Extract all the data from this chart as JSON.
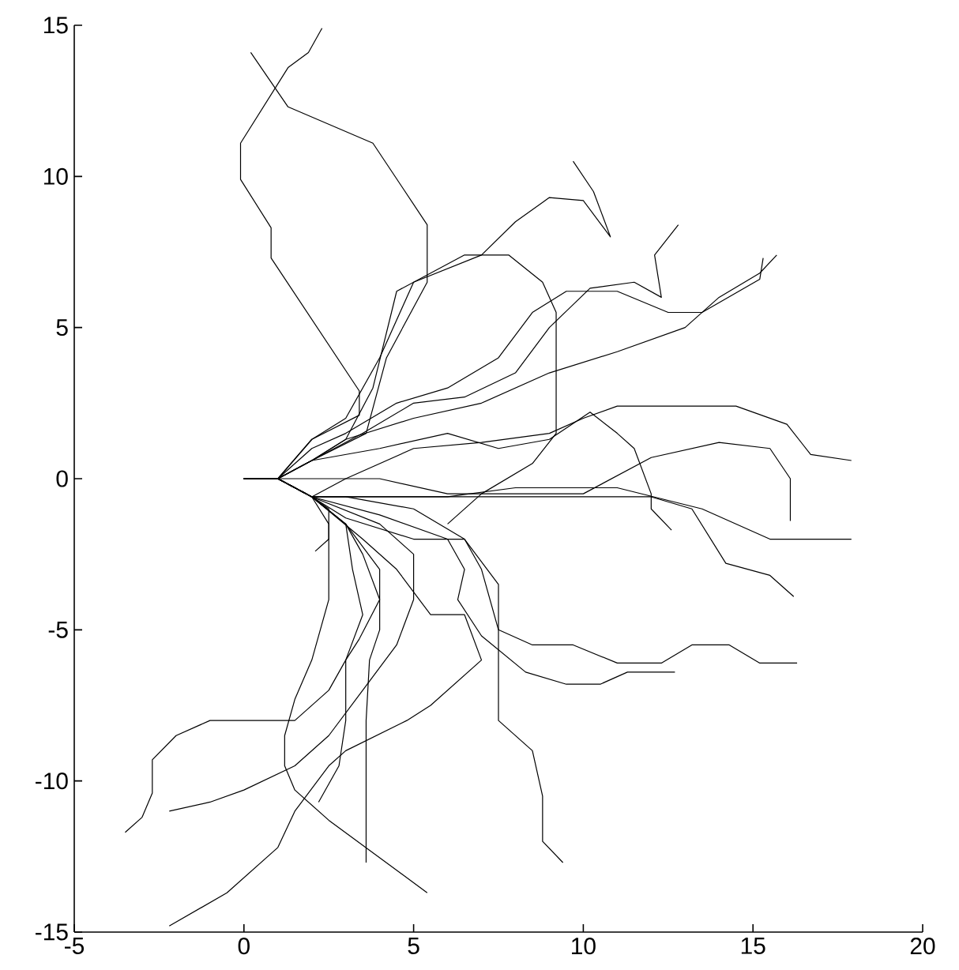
{
  "chart_data": {
    "type": "line",
    "xlim": [
      -5,
      20
    ],
    "ylim": [
      -15,
      15
    ],
    "xticks": [
      -5,
      0,
      5,
      10,
      15,
      20
    ],
    "yticks": [
      -15,
      -10,
      -5,
      0,
      5,
      10,
      15
    ],
    "grid": false,
    "marker": "none",
    "line_style": "solid",
    "series": [
      {
        "color": "#000000",
        "x": [
          0,
          1,
          2,
          3.4,
          3.4,
          0.8,
          0.8,
          -0.1,
          -0.1,
          1.3,
          1.9,
          2.3
        ],
        "values": [
          0,
          0,
          1.3,
          2.1,
          2.9,
          7.3,
          8.3,
          9.9,
          11.1,
          13.6,
          14.1,
          14.9
        ]
      },
      {
        "color": "#000000",
        "x": [
          0,
          1,
          2,
          3.6,
          4.2,
          5.4,
          5.4,
          3.8,
          1.3,
          0.2
        ],
        "values": [
          0,
          0,
          0.6,
          1.5,
          4,
          6.5,
          8.4,
          11.1,
          12.3,
          14.1
        ]
      },
      {
        "color": "#000000",
        "x": [
          0,
          1,
          2,
          3,
          3.8,
          4.5,
          5.5,
          6.5,
          7.8,
          8.8,
          9.2,
          9.2,
          8.5,
          7,
          6
        ],
        "values": [
          0,
          0,
          0.6,
          1.3,
          3,
          6.2,
          6.8,
          7.4,
          7.4,
          6.5,
          5.5,
          1.5,
          0.5,
          -0.5,
          -1.5
        ]
      },
      {
        "color": "#000000",
        "x": [
          0,
          1,
          2,
          3,
          5,
          7,
          9,
          11,
          13,
          14,
          15.2,
          15.7
        ],
        "values": [
          0,
          0,
          0.6,
          1.3,
          2,
          2.5,
          3.5,
          4.2,
          5,
          6,
          6.8,
          7.4
        ]
      },
      {
        "color": "#000000",
        "x": [
          0,
          1,
          2,
          3,
          4.5,
          6,
          7.5,
          8.5,
          9.5,
          11,
          12.5,
          13.5,
          15.2,
          15.3
        ],
        "values": [
          0,
          0,
          1,
          1.5,
          2.5,
          3,
          4,
          5.5,
          6.2,
          6.2,
          5.5,
          5.5,
          6.6,
          7.3
        ]
      },
      {
        "color": "#000000",
        "x": [
          0,
          1,
          2,
          3.5,
          5,
          6.5,
          8,
          9,
          10.2,
          11.5,
          12.3,
          12.1,
          12.8
        ],
        "values": [
          0,
          0,
          0.6,
          1.5,
          2.5,
          2.7,
          3.5,
          5,
          6.3,
          6.5,
          6,
          7.4,
          8.4
        ]
      },
      {
        "color": "#000000",
        "x": [
          0,
          1,
          2,
          3,
          4,
          5,
          7,
          8,
          9,
          10,
          10.8,
          10.3,
          9.7
        ],
        "values": [
          0,
          0,
          1.3,
          2,
          4,
          6.5,
          7.4,
          8.5,
          9.3,
          9.2,
          8,
          9.5,
          10.5
        ]
      },
      {
        "color": "#000000",
        "x": [
          0,
          1,
          2,
          3,
          5,
          7,
          9,
          10,
          11,
          14.5,
          16,
          16.7,
          17.9
        ],
        "values": [
          0,
          0,
          -0.6,
          0,
          1,
          1.2,
          1.5,
          2,
          2.4,
          2.4,
          1.8,
          0.8,
          0.6
        ]
      },
      {
        "color": "#000000",
        "x": [
          0,
          1,
          2,
          4,
          6,
          8,
          10,
          12,
          14,
          15.5,
          16.1,
          16.1
        ],
        "values": [
          0,
          0,
          0,
          0,
          -0.5,
          -0.5,
          -0.5,
          0.7,
          1.2,
          1,
          0,
          -1.4
        ]
      },
      {
        "color": "#000000",
        "x": [
          0,
          1,
          2,
          4,
          6,
          8,
          10,
          11,
          13.5,
          15.5,
          17.9
        ],
        "values": [
          0,
          0,
          -0.6,
          -0.6,
          -0.6,
          -0.3,
          -0.3,
          -0.3,
          -1,
          -2,
          -2
        ]
      },
      {
        "color": "#000000",
        "x": [
          0,
          1,
          2,
          4,
          6,
          8,
          12,
          13.2,
          14.2,
          15.5,
          16.2
        ],
        "values": [
          0,
          0,
          -0.6,
          -0.6,
          -0.6,
          -0.6,
          -0.6,
          -1,
          -2.8,
          -3.2,
          -3.9
        ]
      },
      {
        "color": "#000000",
        "x": [
          0,
          1,
          2,
          4,
          6,
          7.5,
          9,
          10.2,
          11,
          11.5,
          12,
          12,
          12.6
        ],
        "values": [
          0,
          0,
          0.6,
          1,
          1.5,
          1,
          1.3,
          2.2,
          1.5,
          1,
          -0.5,
          -1,
          -1.7
        ]
      },
      {
        "color": "#000000",
        "x": [
          0,
          1,
          2,
          3,
          5,
          6.5,
          7,
          7.5,
          8.5,
          9.7,
          11,
          12.3,
          13.2,
          14.3,
          15.2,
          16.3
        ],
        "values": [
          0,
          0,
          -0.6,
          -0.6,
          -1,
          -2,
          -3,
          -5,
          -5.5,
          -5.5,
          -6.1,
          -6.1,
          -5.5,
          -5.5,
          -6.1,
          -6.1
        ]
      },
      {
        "color": "#000000",
        "x": [
          0,
          1,
          2,
          4,
          6,
          6.5,
          6.3,
          7,
          8.3,
          9.5,
          10.5,
          11.3,
          12.7
        ],
        "values": [
          0,
          0,
          -0.6,
          -1.2,
          -2,
          -3,
          -4,
          -5.2,
          -6.4,
          -6.8,
          -6.8,
          -6.4,
          -6.4
        ]
      },
      {
        "color": "#000000",
        "x": [
          0,
          1,
          2,
          3,
          5,
          6.5,
          7.5,
          7.5,
          8.5,
          8.8,
          8.8,
          9.4
        ],
        "values": [
          0,
          0,
          -0.6,
          -1.3,
          -2,
          -2,
          -3.5,
          -8,
          -9,
          -10.5,
          -12,
          -12.7
        ]
      },
      {
        "color": "#000000",
        "x": [
          0,
          1,
          2,
          3,
          3.5,
          4,
          3.4,
          3,
          2.5,
          1.5,
          -1,
          -2,
          -2.7,
          -2.7,
          -3,
          -3.5
        ],
        "values": [
          0,
          0,
          -0.6,
          -1.5,
          -2.5,
          -4,
          -5.3,
          -6,
          -7,
          -8,
          -8,
          -8.5,
          -9.3,
          -10.4,
          -11.2,
          -11.7
        ]
      },
      {
        "color": "#000000",
        "x": [
          0,
          1,
          2,
          4,
          5,
          5,
          4.5,
          3.5,
          2.5,
          1.5,
          0,
          -1,
          -2.2
        ],
        "values": [
          0,
          0,
          -0.6,
          -1.5,
          -2.5,
          -4,
          -5.5,
          -7,
          -8.5,
          -9.5,
          -10.3,
          -10.7,
          -11
        ]
      },
      {
        "color": "#000000",
        "x": [
          0,
          1,
          2,
          3.5,
          4.5,
          5.5,
          6.5,
          7,
          5.5,
          4.8,
          3,
          2.5,
          1.5,
          1,
          -0.5,
          -2.2
        ],
        "values": [
          0,
          0,
          -0.6,
          -2,
          -3,
          -4.5,
          -4.5,
          -6,
          -7.5,
          -8,
          -9,
          -9.5,
          -11,
          -12.2,
          -13.7,
          -14.8
        ]
      },
      {
        "color": "#000000",
        "x": [
          0,
          1,
          2,
          3,
          4,
          4,
          3.7,
          3.6,
          3.6
        ],
        "values": [
          0,
          0,
          -0.6,
          -1.5,
          -3,
          -5,
          -6,
          -8,
          -12.7
        ]
      },
      {
        "color": "#000000",
        "x": [
          0,
          1,
          2,
          2.5,
          2.5,
          2,
          1.5,
          1.2,
          1.2,
          1.5,
          2.5,
          5.4
        ],
        "values": [
          0,
          0,
          -0.6,
          -1.5,
          -4,
          -6,
          -7.3,
          -8.5,
          -9.5,
          -10.3,
          -11.3,
          -13.7
        ]
      },
      {
        "color": "#000000",
        "x": [
          0,
          1,
          2,
          2.5,
          2.5,
          2.1
        ],
        "values": [
          0,
          0,
          -0.6,
          -1,
          -2,
          -2.4
        ]
      },
      {
        "color": "#000000",
        "x": [
          0,
          1,
          2,
          3,
          3.2,
          3.5,
          3,
          3,
          2.8,
          2.2
        ],
        "values": [
          0,
          0,
          -0.6,
          -1.5,
          -3,
          -4.5,
          -6,
          -8,
          -9.5,
          -10.7
        ]
      }
    ]
  }
}
